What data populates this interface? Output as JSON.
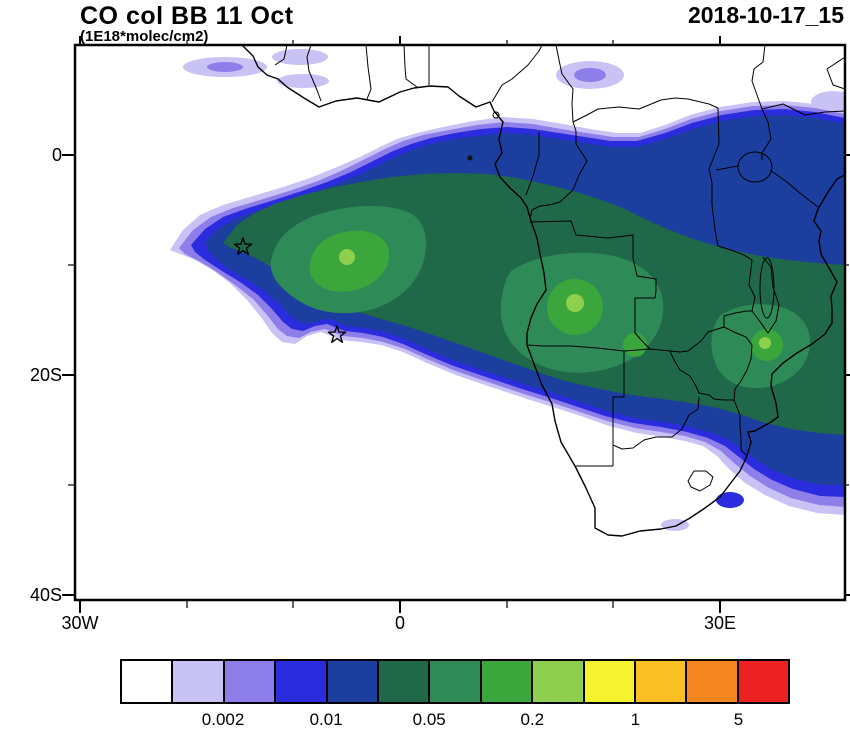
{
  "header": {
    "title": "CO col BB 11 Oct",
    "units": "(1E18*molec/cm2)",
    "datetime": "2018-10-17_15"
  },
  "axes": {
    "y_ticks": [
      "0",
      "20S",
      "40S"
    ],
    "x_ticks": [
      "30W",
      "0",
      "30E"
    ]
  },
  "colorbar": {
    "labels": [
      "0.002",
      "0.01",
      "0.05",
      "0.2",
      "1",
      "5"
    ],
    "colors": [
      "#ffffff",
      "#c9c2f4",
      "#8e7ee9",
      "#2c2cdf",
      "#1c3e9e",
      "#20684a",
      "#2e8b57",
      "#3aa63c",
      "#8ed04e",
      "#f5f22f",
      "#f9bf23",
      "#f6861f",
      "#ec2222"
    ]
  },
  "chart_data": {
    "type": "heatmap",
    "title": "CO col BB 11 Oct",
    "units": "1E18*molec/cm2",
    "datetime_label": "2018-10-17_15",
    "projection": "lat-lon map over Africa and the South Atlantic",
    "lon_range": [
      -30.5,
      41.5
    ],
    "lat_range": [
      -40.5,
      10.3
    ],
    "x_tick_values_deg": [
      -30,
      0,
      30
    ],
    "y_tick_values_deg": [
      0,
      -20,
      -40
    ],
    "contour_levels": [
      0.001,
      0.002,
      0.005,
      0.01,
      0.02,
      0.05,
      0.1,
      0.2,
      0.5,
      1,
      2,
      5
    ],
    "legend_position": "bottom",
    "grid": false,
    "markers": [
      {
        "symbol": "star",
        "lon": -14.4,
        "lat": -7.9
      },
      {
        "symbol": "star",
        "lon": -5.7,
        "lat": -15.9
      }
    ],
    "summary": "Biomass-burning CO column plume: green core (0.05-0.5) stretching from the tropical South Atlantic near 15W,8S eastward across Angola, Zambia, Zimbabwe and Mozambique; surrounded by blue/navy bands (0.01-0.05) reaching East Africa and the SW Indian Ocean; pale lavender fringes (0.002-0.01) at the plume edges and small patches off West Africa and over Sudan."
  }
}
